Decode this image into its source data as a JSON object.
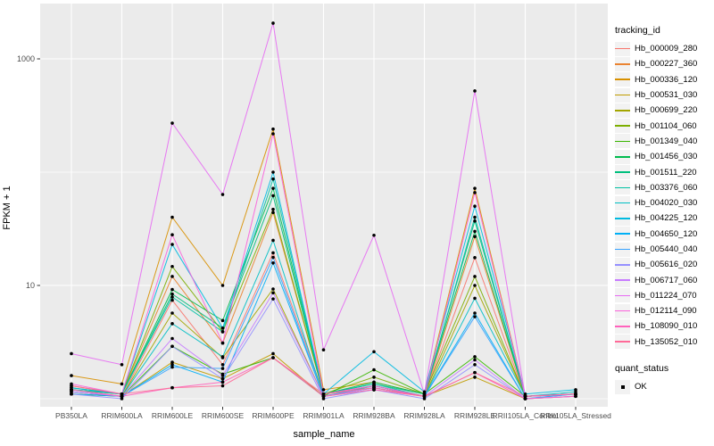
{
  "figure": {
    "background": "#FFFFFF",
    "panel_background": "#EBEBEB",
    "grid_color": "#FFFFFF",
    "tick_color": "#333333",
    "tick_label_color": "#4D4D4D",
    "axis_title_color": "#000000",
    "point_color": "#000000",
    "legend_key_background": "#F2F2F2"
  },
  "chart_data": {
    "type": "line",
    "title": "",
    "xlabel": "sample_name",
    "ylabel": "FPKM + 1",
    "y_scale": "log10",
    "grid": true,
    "legend_position": "right",
    "ylim": [
      0.86,
      3100
    ],
    "y_ticks": [
      {
        "label": "1000",
        "value": 1000
      },
      {
        "label": "10",
        "value": 10
      }
    ],
    "y_minor_grid_values": [
      100,
      1
    ],
    "categories": [
      "PB350LA",
      "RRIM600LA",
      "RRIM600LE",
      "RRIM600SE",
      "RRIM600PE",
      "RRIM901LA",
      "RRIM928BA",
      "RRIM928LA",
      "RRIM928LE",
      "RRII105LA_Control",
      "RRII105LA_Stressed"
    ],
    "series": [
      {
        "name": "Hb_000009_280",
        "color": "#F8766D",
        "values": [
          1.2,
          1.05,
          7.4,
          2.0,
          19.4,
          1.1,
          1.3,
          1.05,
          17.6,
          1.05,
          1.1
        ]
      },
      {
        "name": "Hb_000227_360",
        "color": "#EA8331",
        "values": [
          1.3,
          1.1,
          12.0,
          3.1,
          44.0,
          1.1,
          1.25,
          1.05,
          27.0,
          1.05,
          1.1
        ]
      },
      {
        "name": "Hb_000336_120",
        "color": "#D89000",
        "values": [
          1.6,
          1.35,
          40.0,
          10.0,
          240.0,
          1.2,
          1.4,
          1.1,
          72.0,
          1.05,
          1.1
        ]
      },
      {
        "name": "Hb_000531_030",
        "color": "#C09B00",
        "values": [
          1.1,
          1.05,
          2.1,
          1.5,
          2.5,
          1.05,
          1.2,
          1.05,
          1.55,
          1.0,
          1.05
        ]
      },
      {
        "name": "Hb_000699_220",
        "color": "#A3A500",
        "values": [
          1.15,
          1.05,
          5.7,
          2.3,
          9.3,
          1.05,
          1.3,
          1.05,
          10.0,
          1.05,
          1.1
        ]
      },
      {
        "name": "Hb_001104_060",
        "color": "#7CAE00",
        "values": [
          1.2,
          1.1,
          14.7,
          3.9,
          47.0,
          1.1,
          1.55,
          1.1,
          12.0,
          1.05,
          1.1
        ]
      },
      {
        "name": "Hb_001349_040",
        "color": "#39B600",
        "values": [
          1.1,
          1.05,
          2.9,
          1.65,
          2.3,
          1.05,
          1.8,
          1.1,
          2.35,
          1.05,
          1.1
        ]
      },
      {
        "name": "Hb_001456_030",
        "color": "#00BB4E",
        "values": [
          1.25,
          1.1,
          9.2,
          4.9,
          72.0,
          1.1,
          1.4,
          1.1,
          30.0,
          1.05,
          1.1
        ]
      },
      {
        "name": "Hb_001511_220",
        "color": "#00BF7D",
        "values": [
          1.2,
          1.1,
          8.4,
          4.2,
          62.0,
          1.1,
          1.35,
          1.1,
          37.0,
          1.05,
          1.1
        ]
      },
      {
        "name": "Hb_003376_060",
        "color": "#00C1A3",
        "values": [
          1.2,
          1.1,
          7.9,
          3.9,
          87.0,
          1.1,
          1.35,
          1.05,
          40.0,
          1.05,
          1.1
        ]
      },
      {
        "name": "Hb_004020_030",
        "color": "#00BFC4",
        "values": [
          1.15,
          1.05,
          4.6,
          2.35,
          25.0,
          1.05,
          1.3,
          1.05,
          7.7,
          1.05,
          1.15
        ]
      },
      {
        "name": "Hb_004225_120",
        "color": "#00BAE0",
        "values": [
          1.25,
          1.1,
          23.0,
          4.2,
          100.0,
          1.1,
          2.6,
          1.15,
          50.0,
          1.1,
          1.2
        ]
      },
      {
        "name": "Hb_004650_120",
        "color": "#00B0F6",
        "values": [
          1.1,
          1.05,
          2.0,
          1.4,
          15.8,
          1.05,
          1.25,
          1.05,
          5.7,
          1.0,
          1.1
        ]
      },
      {
        "name": "Hb_005440_040",
        "color": "#35A2FF",
        "values": [
          1.15,
          1.05,
          1.9,
          1.85,
          17.7,
          1.05,
          1.25,
          1.05,
          5.3,
          1.0,
          1.1
        ]
      },
      {
        "name": "Hb_005616_020",
        "color": "#9590FF",
        "values": [
          1.1,
          1.0,
          2.9,
          1.5,
          7.6,
          1.0,
          1.2,
          1.0,
          2.0,
          1.0,
          1.05
        ]
      },
      {
        "name": "Hb_006717_060",
        "color": "#C77CFF",
        "values": [
          1.15,
          1.05,
          3.4,
          1.6,
          8.6,
          1.05,
          1.25,
          1.05,
          2.2,
          1.0,
          1.05
        ]
      },
      {
        "name": "Hb_011224_070",
        "color": "#E76BF3",
        "values": [
          2.5,
          2.0,
          271.0,
          63.5,
          2066.0,
          2.7,
          27.7,
          1.1,
          521.0,
          1.05,
          1.1
        ]
      },
      {
        "name": "Hb_012114_090",
        "color": "#FA62DB",
        "values": [
          1.35,
          1.1,
          28.0,
          3.1,
          218.0,
          1.1,
          1.3,
          1.05,
          66.0,
          1.05,
          1.1
        ]
      },
      {
        "name": "Hb_108090_010",
        "color": "#FF62BC",
        "values": [
          1.2,
          1.05,
          1.25,
          1.4,
          2.3,
          1.05,
          1.2,
          1.05,
          1.7,
          1.0,
          1.05
        ]
      },
      {
        "name": "Hb_135052_010",
        "color": "#FF6A98",
        "values": [
          1.3,
          1.1,
          1.25,
          1.3,
          2.3,
          1.1,
          1.25,
          1.05,
          1.7,
          1.05,
          1.1
        ]
      }
    ],
    "legend": {
      "title": "tracking_id"
    },
    "quant_legend": {
      "title": "quant_status",
      "items": [
        {
          "label": "OK",
          "marker": "black-square-point"
        }
      ]
    }
  }
}
